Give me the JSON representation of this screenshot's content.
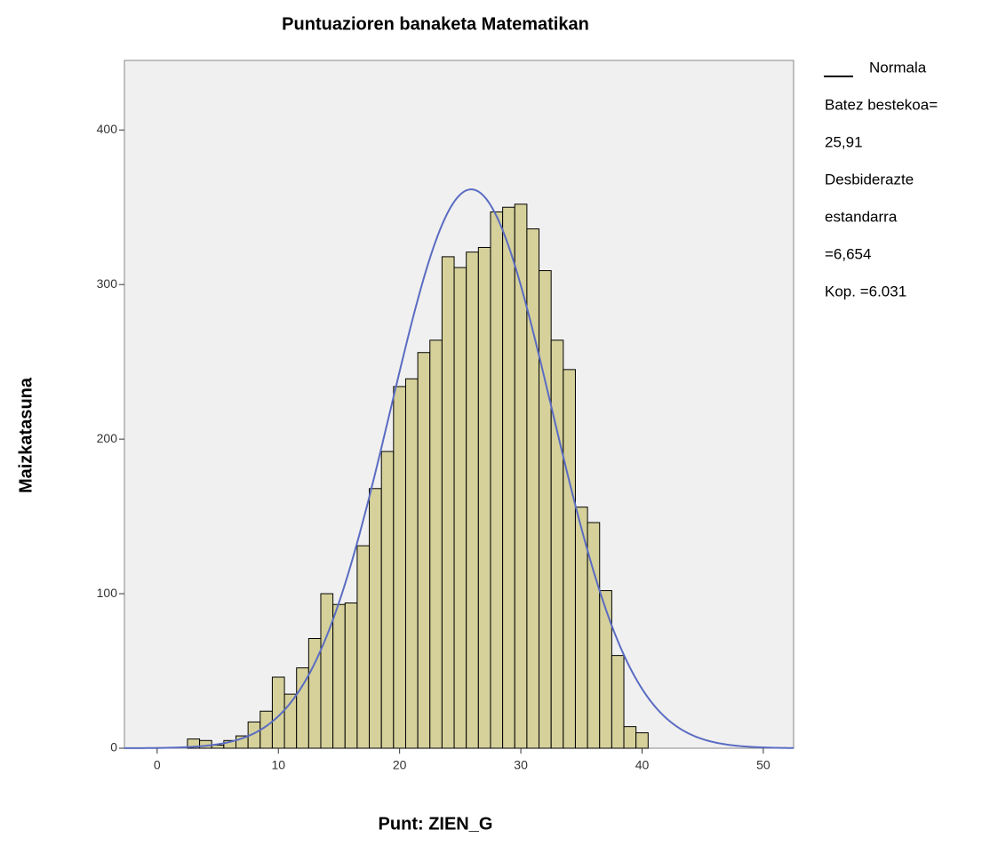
{
  "chart_data": {
    "type": "histogram",
    "title": "Puntuazioren banaketa Matematikan",
    "xlabel": "Punt: ZIEN_G",
    "ylabel": "Maizkatasuna",
    "bins": [
      2.5,
      3.5,
      4.5,
      5.5,
      6.5,
      7.5,
      8.5,
      9.5,
      10.5,
      11.5,
      12.5,
      13.5,
      14.5,
      15.5,
      16.5,
      17.5,
      18.5,
      19.5,
      20.5,
      21.5,
      22.5,
      23.5,
      24.5,
      25.5,
      26.5,
      27.5,
      28.5,
      29.5,
      30.5,
      31.5,
      32.5,
      33.5,
      34.5,
      35.5,
      36.5,
      37.5,
      38.5,
      39.5,
      40.5
    ],
    "counts": [
      6,
      5,
      2,
      5,
      8,
      17,
      24,
      46,
      35,
      52,
      71,
      100,
      93,
      94,
      131,
      168,
      192,
      234,
      239,
      256,
      264,
      318,
      311,
      321,
      324,
      347,
      350,
      352,
      336,
      309,
      264,
      245,
      156,
      146,
      102,
      60,
      14,
      10
    ],
    "color": "#d6d19b",
    "xlim": [
      -2.7,
      52.5
    ],
    "ylim": [
      0,
      445
    ],
    "xticks": [
      0,
      10,
      20,
      30,
      40,
      50
    ],
    "yticks": [
      0,
      100,
      200,
      300,
      400
    ],
    "normal": {
      "mean": 25.91,
      "sd": 6.654,
      "n": 6031,
      "color": "#5a6cc2"
    },
    "legend": [
      "Normala",
      "Batez bestekoa=",
      "25,91",
      "Desbiderazte",
      "estandarra",
      "=6,654",
      "Kop. =6.031"
    ]
  }
}
